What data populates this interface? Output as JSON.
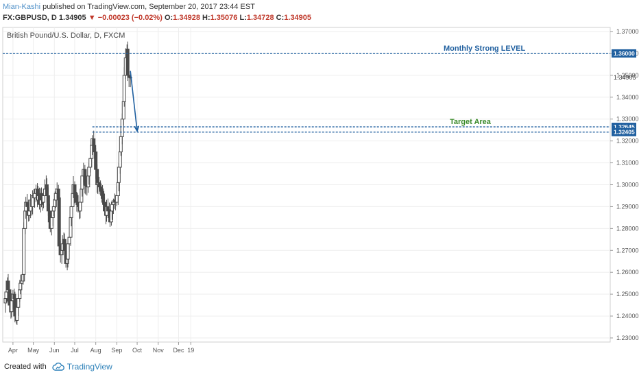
{
  "header": {
    "author": "Mian-Kashi",
    "published": "published on TradingView.com, September 20, 2017 23:44 EST",
    "symbol": "FX:GBPUSD, D",
    "last": "1.34905",
    "change": "−0.00023 (−0.02%)",
    "o_label": "O:",
    "o_value": "1.34928",
    "h_label": "H:",
    "h_value": "1.35076",
    "l_label": "L:",
    "l_value": "1.34728",
    "c_label": "C:",
    "c_value": "1.34905"
  },
  "footer": {
    "created_with": "Created with",
    "brand": "TradingView"
  },
  "colors": {
    "candle": "#4a4a4a",
    "level_line": "#1f5f9f",
    "price_tag": "#1f5f9f",
    "target_text": "#3a8a2a",
    "monthly_text": "#1f5f9f",
    "arrow": "#1f5f9f"
  },
  "chart_data": {
    "type": "candlestick",
    "title": "British Pound/U.S. Dollar, D, FXCM",
    "ylim": [
      1.23,
      1.37
    ],
    "y_ticks": [
      "1.37000",
      "1.36000",
      "1.35000",
      "1.34000",
      "1.33000",
      "1.32000",
      "1.31000",
      "1.30000",
      "1.29000",
      "1.28000",
      "1.27000",
      "1.26000",
      "1.25000",
      "1.24000",
      "1.23000"
    ],
    "x_ticks": [
      "Apr",
      "May",
      "Jun",
      "Jul",
      "Aug",
      "Sep",
      "Oct",
      "Nov",
      "Dec",
      "19"
    ],
    "grid": true,
    "levels": [
      {
        "price": 1.36,
        "tag": "1.36000",
        "label": "Monthly Strong LEVEL"
      },
      {
        "price": 1.32645,
        "tag": "1.32645",
        "label": "Target Area"
      },
      {
        "price": 1.32405,
        "tag": "1.32405",
        "label": ""
      }
    ],
    "last_price_tag": "1.34905",
    "arrow": {
      "from_price": 1.352,
      "to_price": 1.3245,
      "from_date": "2017-09-21",
      "to_date": "2017-10-01"
    },
    "closes": [
      1.248,
      1.251,
      1.256,
      1.252,
      1.245,
      1.242,
      1.247,
      1.25,
      1.248,
      1.24,
      1.238,
      1.244,
      1.248,
      1.252,
      1.255,
      1.256,
      1.259,
      1.28,
      1.288,
      1.292,
      1.29,
      1.286,
      1.288,
      1.293,
      1.29,
      1.295,
      1.294,
      1.296,
      1.298,
      1.293,
      1.295,
      1.291,
      1.296,
      1.293,
      1.292,
      1.295,
      1.298,
      1.3,
      1.295,
      1.288,
      1.283,
      1.28,
      1.285,
      1.288,
      1.29,
      1.293,
      1.296,
      1.298,
      1.294,
      1.272,
      1.268,
      1.27,
      1.273,
      1.275,
      1.27,
      1.264,
      1.266,
      1.273,
      1.276,
      1.285,
      1.29,
      1.296,
      1.3,
      1.296,
      1.295,
      1.292,
      1.29,
      1.288,
      1.292,
      1.298,
      1.304,
      1.307,
      1.3,
      1.3,
      1.299,
      1.304,
      1.308,
      1.312,
      1.318,
      1.321,
      1.318,
      1.315,
      1.307,
      1.3,
      1.301,
      1.299,
      1.298,
      1.297,
      1.294,
      1.292,
      1.288,
      1.286,
      1.29,
      1.288,
      1.285,
      1.283,
      1.288,
      1.291,
      1.292,
      1.293,
      1.292,
      1.295,
      1.301,
      1.308,
      1.315,
      1.322,
      1.33,
      1.338,
      1.35,
      1.358,
      1.362,
      1.35,
      1.349,
      1.3491
    ]
  }
}
